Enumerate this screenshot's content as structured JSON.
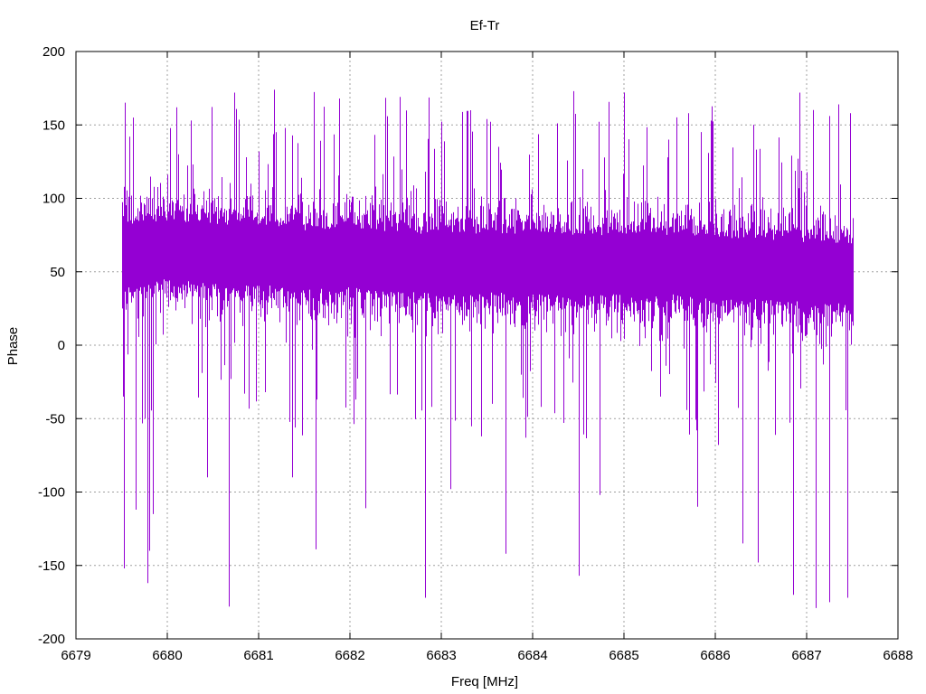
{
  "chart_data": {
    "type": "line",
    "title": "Ef-Tr",
    "xlabel": "Freq [MHz]",
    "ylabel": "Phase",
    "xlim": [
      6679,
      6688
    ],
    "ylim": [
      -200,
      200
    ],
    "x_ticks": [
      "6679",
      "6680",
      "6681",
      "6682",
      "6683",
      "6684",
      "6685",
      "6686",
      "6687",
      "6688"
    ],
    "y_ticks": [
      "200",
      "150",
      "100",
      "50",
      "0",
      "-50",
      "-100",
      "-150",
      "-200"
    ],
    "grid": true,
    "series": [
      {
        "color": "#9400d3",
        "x_range": [
          6679.5,
          6687.5
        ],
        "baseline_profile": {
          "x": [
            6679.5,
            6680.0,
            6680.5,
            6681.0,
            6681.5,
            6682.0,
            6682.5,
            6683.0,
            6683.5,
            6684.0,
            6684.5,
            6685.0,
            6685.5,
            6686.0,
            6686.5,
            6687.0,
            6687.5
          ],
          "y": [
            62,
            65,
            62,
            62,
            58,
            60,
            57,
            55,
            56,
            55,
            54,
            56,
            55,
            52,
            52,
            50,
            48
          ]
        },
        "spikes": [
          {
            "x": 6679.52,
            "y": -152
          },
          {
            "x": 6679.58,
            "y": 142
          },
          {
            "x": 6679.62,
            "y": 155
          },
          {
            "x": 6679.65,
            "y": -112
          },
          {
            "x": 6679.78,
            "y": -162
          },
          {
            "x": 6679.8,
            "y": -140
          },
          {
            "x": 6679.84,
            "y": -115
          },
          {
            "x": 6680.1,
            "y": 162
          },
          {
            "x": 6680.44,
            "y": -90
          },
          {
            "x": 6680.67,
            "y": -178
          },
          {
            "x": 6680.73,
            "y": 172
          },
          {
            "x": 6681.17,
            "y": 174
          },
          {
            "x": 6681.37,
            "y": -90
          },
          {
            "x": 6681.62,
            "y": -139
          },
          {
            "x": 6681.88,
            "y": 168
          },
          {
            "x": 6682.17,
            "y": -111
          },
          {
            "x": 6682.82,
            "y": -172
          },
          {
            "x": 6683.1,
            "y": -98
          },
          {
            "x": 6683.32,
            "y": 160
          },
          {
            "x": 6683.7,
            "y": -142
          },
          {
            "x": 6684.45,
            "y": 173
          },
          {
            "x": 6684.5,
            "y": -157
          },
          {
            "x": 6684.73,
            "y": -102
          },
          {
            "x": 6685.0,
            "y": 172
          },
          {
            "x": 6685.7,
            "y": 158
          },
          {
            "x": 6685.8,
            "y": -110
          },
          {
            "x": 6686.3,
            "y": -135
          },
          {
            "x": 6686.47,
            "y": -148
          },
          {
            "x": 6686.85,
            "y": -170
          },
          {
            "x": 6686.92,
            "y": 172
          },
          {
            "x": 6687.1,
            "y": -179
          },
          {
            "x": 6687.25,
            "y": -175
          },
          {
            "x": 6687.35,
            "y": 164
          },
          {
            "x": 6687.45,
            "y": -172
          },
          {
            "x": 6687.48,
            "y": 158
          }
        ]
      }
    ]
  }
}
